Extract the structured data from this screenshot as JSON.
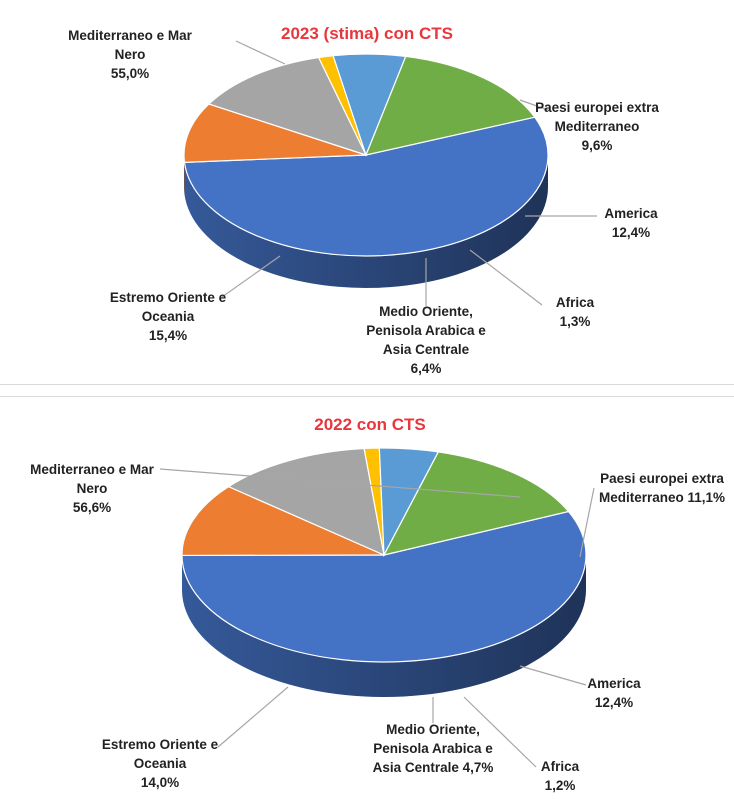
{
  "chart_data": [
    {
      "type": "pie",
      "title": "2023 (stima) con CTS",
      "slices": [
        {
          "name": "Mediterraneo e Mar Nero",
          "value": 55.0,
          "color": "#4472c4",
          "label_lines": [
            "Mediterraneo e Mar",
            "Nero",
            "55,0%"
          ]
        },
        {
          "name": "Paesi europei extra Mediterraneo",
          "value": 9.6,
          "color": "#ed7d31",
          "label_lines": [
            "Paesi europei extra",
            "Mediterraneo",
            "9,6%"
          ]
        },
        {
          "name": "America",
          "value": 12.4,
          "color": "#a5a5a5",
          "label_lines": [
            "America",
            "12,4%"
          ]
        },
        {
          "name": "Africa",
          "value": 1.3,
          "color": "#ffc000",
          "label_lines": [
            "Africa",
            "1,3%"
          ]
        },
        {
          "name": "Medio Oriente, Penisola Arabica e Asia Centrale",
          "value": 6.4,
          "color": "#5b9bd5",
          "label_lines": [
            "Medio Oriente,",
            "Penisola Arabica e",
            "Asia Centrale",
            "6,4%"
          ]
        },
        {
          "name": "Estremo Oriente e Oceania",
          "value": 15.4,
          "color": "#70ad47",
          "label_lines": [
            "Estremo Oriente e",
            "Oceania",
            "15,4%"
          ]
        }
      ]
    },
    {
      "type": "pie",
      "title": "2022 con CTS",
      "slices": [
        {
          "name": "Mediterraneo e Mar Nero",
          "value": 56.6,
          "color": "#4472c4",
          "label_lines": [
            "Mediterraneo e Mar",
            "Nero",
            "56,6%"
          ]
        },
        {
          "name": "Paesi europei extra Mediterraneo",
          "value": 11.1,
          "color": "#ed7d31",
          "label_lines": [
            "Paesi europei extra",
            "Mediterraneo 11,1%"
          ]
        },
        {
          "name": "America",
          "value": 12.4,
          "color": "#a5a5a5",
          "label_lines": [
            "America",
            "12,4%"
          ]
        },
        {
          "name": "Africa",
          "value": 1.2,
          "color": "#ffc000",
          "label_lines": [
            "Africa",
            "1,2%"
          ]
        },
        {
          "name": "Medio Oriente, Penisola Arabica e Asia Centrale",
          "value": 4.7,
          "color": "#5b9bd5",
          "label_lines": [
            "Medio Oriente,",
            "Penisola Arabica e",
            "Asia Centrale 4,7%"
          ]
        },
        {
          "name": "Estremo Oriente e Oceania",
          "value": 14.0,
          "color": "#70ad47",
          "label_lines": [
            "Estremo Oriente e",
            "Oceania",
            "14,0%"
          ]
        }
      ]
    }
  ]
}
